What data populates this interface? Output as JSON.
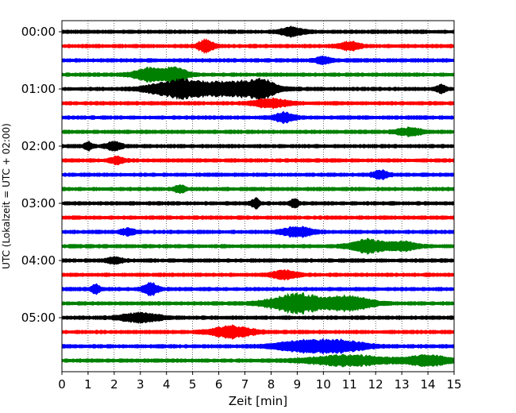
{
  "chart_data": {
    "type": "line",
    "title": "",
    "xlabel": "Zeit  [min]",
    "ylabel": "UTC (Lokalzeit = UTC + 02:00)",
    "xlim": [
      0,
      15
    ],
    "x_ticks": [
      "0",
      "1",
      "2",
      "3",
      "4",
      "5",
      "6",
      "7",
      "8",
      "9",
      "10",
      "11",
      "12",
      "13",
      "14",
      "15"
    ],
    "y_ticks": [
      {
        "label": "00:00",
        "trace": 0
      },
      {
        "label": "01:00",
        "trace": 4
      },
      {
        "label": "02:00",
        "trace": 8
      },
      {
        "label": "03:00",
        "trace": 12
      },
      {
        "label": "04:00",
        "trace": 16
      },
      {
        "label": "05:00",
        "trace": 20
      }
    ],
    "grid": "vertical dotted lines at each minute",
    "trace_interval_minutes": 15,
    "color_cycle": [
      "#000000",
      "#ff0000",
      "#0000ff",
      "#008000"
    ],
    "traces": [
      {
        "start": "00:00",
        "events": [
          [
            8.8,
            0.45,
            1.3
          ]
        ]
      },
      {
        "start": "00:15",
        "events": [
          [
            5.5,
            0.3,
            2.0
          ],
          [
            11.0,
            0.4,
            1.3
          ]
        ]
      },
      {
        "start": "00:30",
        "events": [
          [
            10.0,
            0.3,
            1.0
          ]
        ]
      },
      {
        "start": "00:45",
        "events": [
          [
            3.3,
            0.6,
            2.0
          ],
          [
            4.3,
            0.5,
            2.2
          ]
        ]
      },
      {
        "start": "01:00",
        "events": [
          [
            4.5,
            1.1,
            3.0
          ],
          [
            6.7,
            1.2,
            2.4
          ],
          [
            7.7,
            0.5,
            2.0
          ],
          [
            14.5,
            0.2,
            1.2
          ]
        ]
      },
      {
        "start": "01:15",
        "events": [
          [
            8.0,
            0.7,
            1.3
          ]
        ]
      },
      {
        "start": "01:30",
        "events": [
          [
            8.5,
            0.4,
            1.5
          ]
        ]
      },
      {
        "start": "01:45",
        "events": [
          [
            13.3,
            0.5,
            1.2
          ]
        ]
      },
      {
        "start": "02:00",
        "events": [
          [
            1.0,
            0.15,
            1.3
          ],
          [
            2.0,
            0.3,
            1.3
          ]
        ]
      },
      {
        "start": "02:15",
        "events": [
          [
            2.1,
            0.3,
            1.0
          ]
        ]
      },
      {
        "start": "02:30",
        "events": [
          [
            12.2,
            0.3,
            1.2
          ]
        ]
      },
      {
        "start": "02:45",
        "events": [
          [
            4.5,
            0.2,
            1.2
          ]
        ]
      },
      {
        "start": "03:00",
        "events": [
          [
            7.4,
            0.15,
            1.6
          ],
          [
            8.9,
            0.15,
            1.5
          ]
        ]
      },
      {
        "start": "03:15",
        "events": []
      },
      {
        "start": "03:30",
        "events": [
          [
            2.5,
            0.3,
            0.9
          ],
          [
            9.0,
            0.6,
            1.5
          ]
        ]
      },
      {
        "start": "03:45",
        "events": [
          [
            11.7,
            0.7,
            2.0
          ],
          [
            13.0,
            0.6,
            1.3
          ]
        ]
      },
      {
        "start": "04:00",
        "events": [
          [
            2.0,
            0.3,
            1.0
          ]
        ]
      },
      {
        "start": "04:15",
        "events": [
          [
            8.5,
            0.5,
            1.3
          ]
        ]
      },
      {
        "start": "04:30",
        "events": [
          [
            1.3,
            0.15,
            1.6
          ],
          [
            3.4,
            0.3,
            1.8
          ]
        ]
      },
      {
        "start": "04:45",
        "events": [
          [
            9.0,
            1.1,
            3.0
          ],
          [
            11.0,
            0.9,
            2.1
          ]
        ]
      },
      {
        "start": "05:00",
        "events": [
          [
            3.0,
            0.8,
            1.4
          ]
        ]
      },
      {
        "start": "05:15",
        "events": [
          [
            6.5,
            0.8,
            1.8
          ]
        ]
      },
      {
        "start": "05:30",
        "events": [
          [
            9.0,
            1.0,
            1.3
          ],
          [
            10.5,
            1.1,
            2.0
          ]
        ]
      },
      {
        "start": "05:45",
        "events": [
          [
            11.0,
            1.6,
            1.6
          ],
          [
            14.0,
            0.9,
            1.5
          ]
        ]
      }
    ]
  }
}
